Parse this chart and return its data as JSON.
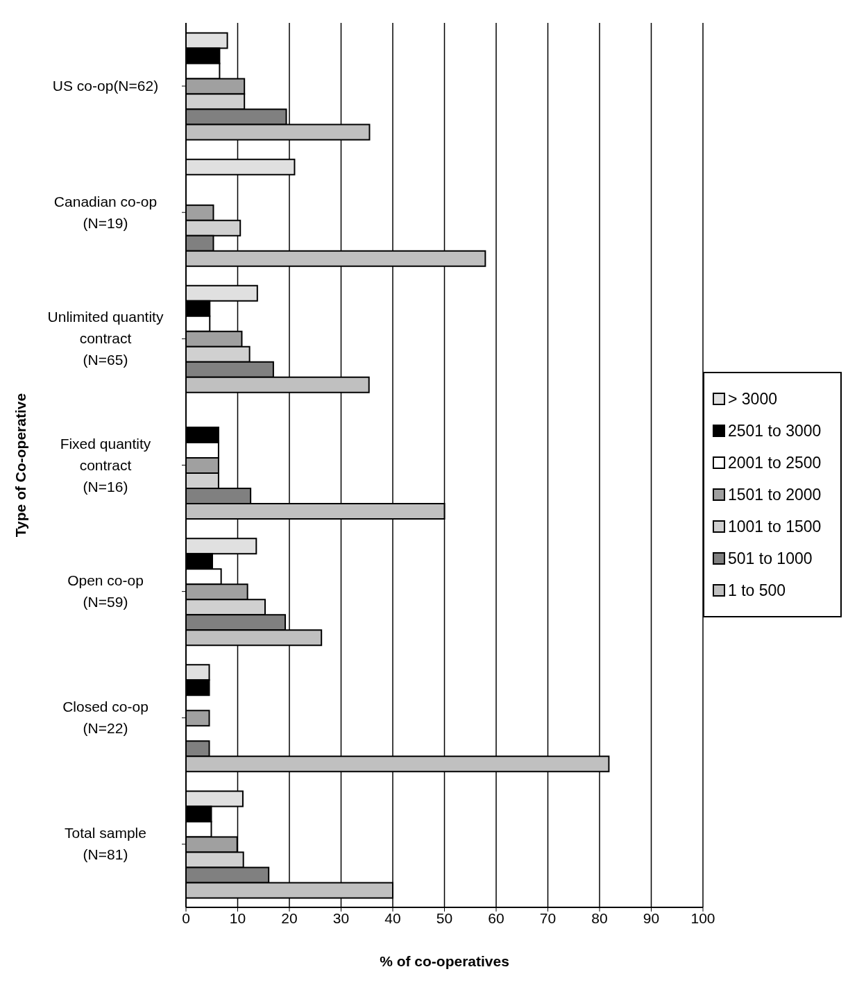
{
  "chart_data": {
    "type": "bar",
    "orientation": "horizontal",
    "xlabel": "% of co-operatives",
    "ylabel": "Type of Co-operative",
    "categories": [
      "US co-op(N=62)",
      "Canadian co-op (N=19)",
      "Unlimited quantity contract (N=65)",
      "Fixed quantity contract (N=16)",
      "Open co-op (N=59)",
      "Closed co-op (N=22)",
      "Total sample (N=81)"
    ],
    "series": [
      {
        "name": "> 3000",
        "color": "#e0e0e0",
        "values": [
          8,
          21,
          13.8,
          0,
          13.6,
          4.5,
          11
        ]
      },
      {
        "name": "2501 to 3000",
        "color": "#000000",
        "values": [
          6.5,
          0,
          4.6,
          6.3,
          5.1,
          4.5,
          4.9
        ]
      },
      {
        "name": "2001 to 2500",
        "color": "#ffffff",
        "values": [
          6.5,
          0,
          4.6,
          6.3,
          6.8,
          0,
          4.9
        ]
      },
      {
        "name": "1501 to 2000",
        "color": "#a0a0a0",
        "values": [
          11.3,
          5.3,
          10.8,
          6.3,
          11.9,
          4.5,
          9.9
        ]
      },
      {
        "name": "1001 to 1500",
        "color": "#d0d0d0",
        "values": [
          11.3,
          10.5,
          12.3,
          6.3,
          15.3,
          0,
          11.1
        ]
      },
      {
        "name": "501 to 1000",
        "color": "#808080",
        "values": [
          19.4,
          5.3,
          16.9,
          12.5,
          19.2,
          4.5,
          16
        ]
      },
      {
        "name": "1 to 500",
        "color": "#c0c0c0",
        "values": [
          35.5,
          57.9,
          35.4,
          50,
          26.2,
          81.8,
          40
        ]
      }
    ],
    "xlim": [
      0,
      100
    ],
    "xticks": [
      0,
      10,
      20,
      30,
      40,
      50,
      60,
      70,
      80,
      90,
      100
    ],
    "grid": "x",
    "legend": "right"
  }
}
